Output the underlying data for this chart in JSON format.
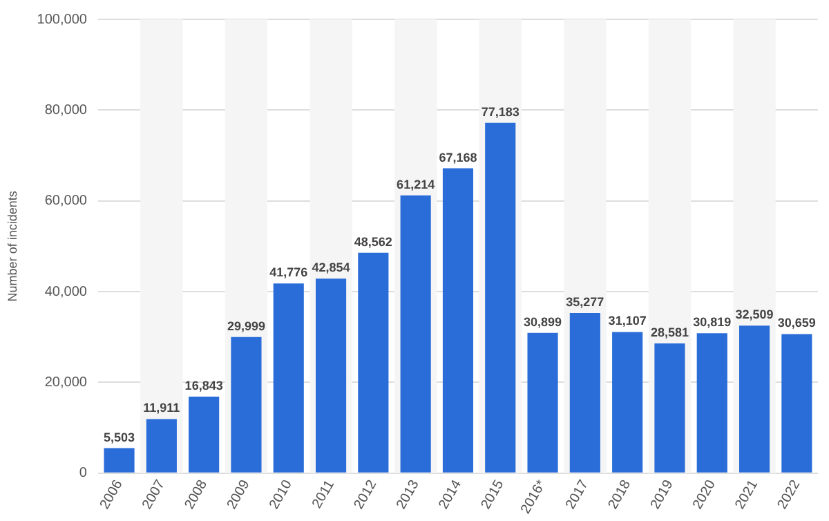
{
  "chart_data": {
    "type": "bar",
    "ylabel": "Number of incidents",
    "categories": [
      "2006",
      "2007",
      "2008",
      "2009",
      "2010",
      "2011",
      "2012",
      "2013",
      "2014",
      "2015",
      "2016*",
      "2017",
      "2018",
      "2019",
      "2020",
      "2021",
      "2022"
    ],
    "values": [
      5503,
      11911,
      16843,
      29999,
      41776,
      42854,
      48562,
      61214,
      67168,
      77183,
      30899,
      35277,
      31107,
      28581,
      30819,
      32509,
      30659
    ],
    "color": "#2a6dd9",
    "ylim": [
      0,
      100000
    ],
    "yticks": [
      {
        "value": 0,
        "label": "0"
      },
      {
        "value": 20000,
        "label": "20,000"
      },
      {
        "value": 40000,
        "label": "40,000"
      },
      {
        "value": 60000,
        "label": "60,000"
      },
      {
        "value": 80000,
        "label": "80,000"
      },
      {
        "value": 100000,
        "label": "100,000"
      }
    ],
    "value_labels": [
      "5,503",
      "11,911",
      "16,843",
      "29,999",
      "41,776",
      "42,854",
      "48,562",
      "61,214",
      "67,168",
      "77,183",
      "30,899",
      "35,277",
      "31,107",
      "28,581",
      "30,819",
      "32,509",
      "30,659"
    ],
    "grid": "y",
    "bands": [
      {
        "axis": "x",
        "from": "2007",
        "to": "2007",
        "color": "#f5f5f5"
      },
      {
        "axis": "x",
        "from": "2009",
        "to": "2009",
        "color": "#f5f5f5"
      },
      {
        "axis": "x",
        "from": "2011",
        "to": "2011",
        "color": "#f5f5f5"
      },
      {
        "axis": "x",
        "from": "2013",
        "to": "2013",
        "color": "#f5f5f5"
      },
      {
        "axis": "x",
        "from": "2015",
        "to": "2015",
        "color": "#f5f5f5"
      },
      {
        "axis": "x",
        "from": "2017",
        "to": "2017",
        "color": "#f5f5f5"
      },
      {
        "axis": "x",
        "from": "2019",
        "to": "2019",
        "color": "#f5f5f5"
      },
      {
        "axis": "x",
        "from": "2021",
        "to": "2021",
        "color": "#f5f5f5"
      }
    ]
  }
}
